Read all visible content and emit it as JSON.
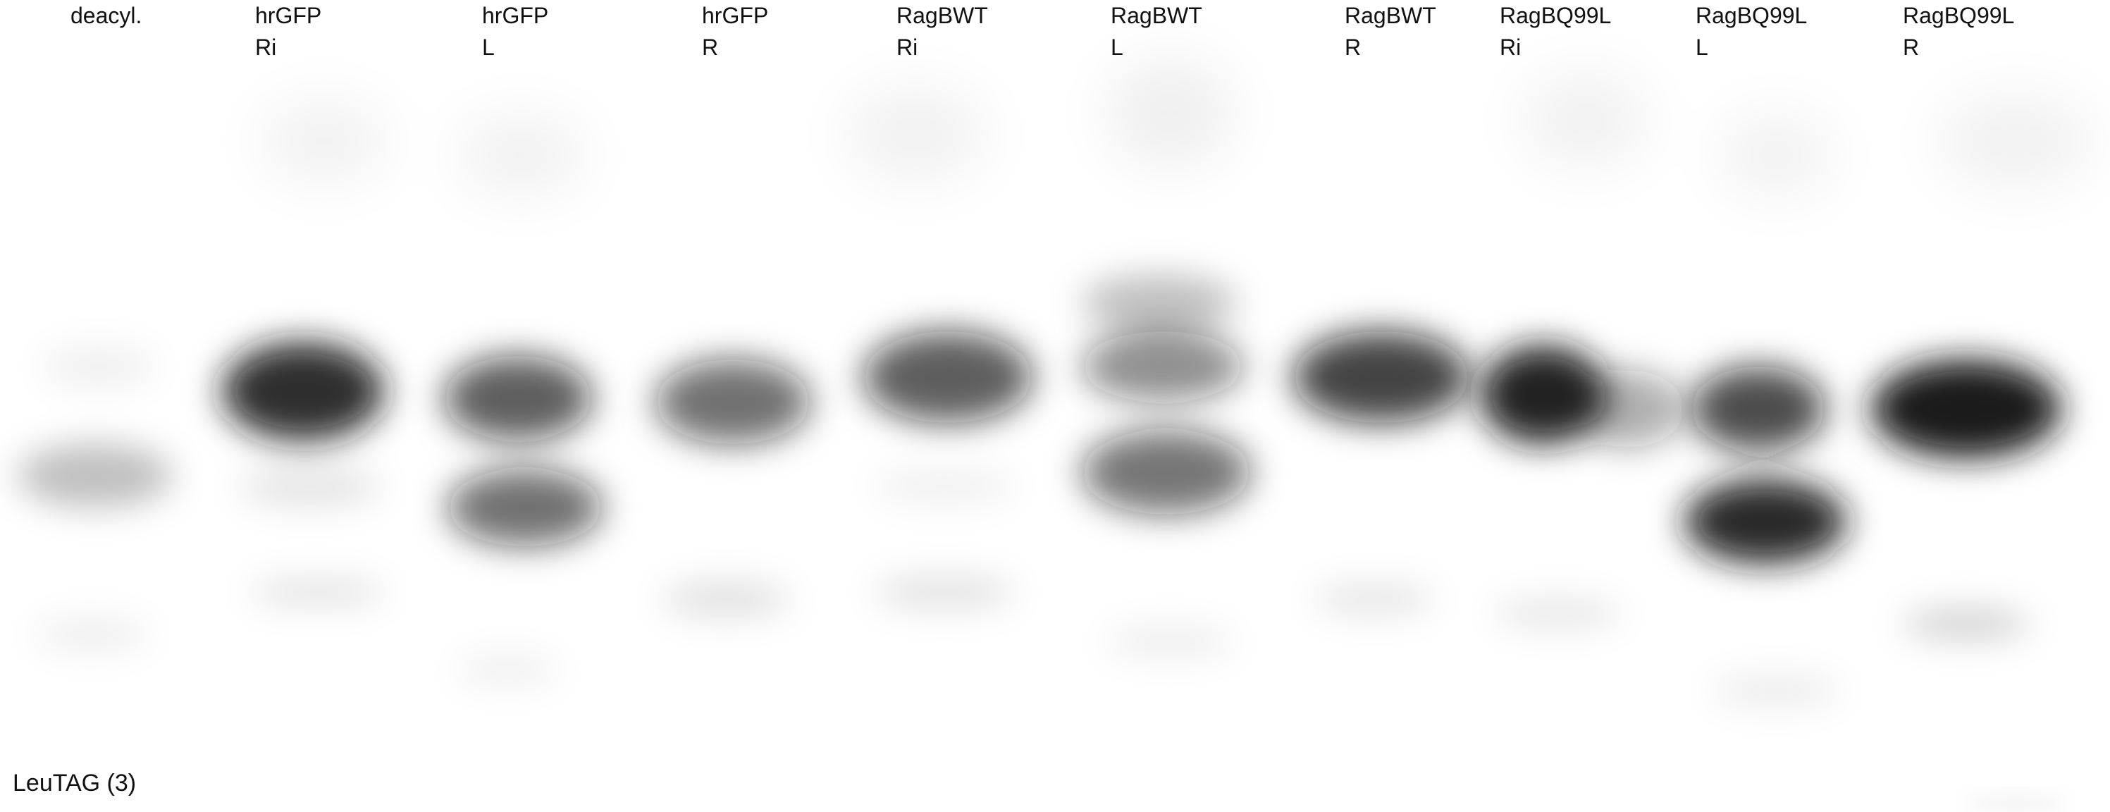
{
  "lanes": [
    {
      "line1": "deacyl.",
      "line2": ""
    },
    {
      "line1": "hrGFP",
      "line2": "Ri"
    },
    {
      "line1": "hrGFP",
      "line2": "L"
    },
    {
      "line1": "hrGFP",
      "line2": "R"
    },
    {
      "line1": "RagBWT",
      "line2": "Ri"
    },
    {
      "line1": "RagBWT",
      "line2": "L"
    },
    {
      "line1": "RagBWT",
      "line2": "R"
    },
    {
      "line1": "RagBQ99L",
      "line2": "Ri"
    },
    {
      "line1": "RagBQ99L",
      "line2": "L"
    },
    {
      "line1": "RagBQ99L",
      "line2": "R"
    }
  ],
  "caption": "LeuTAG (3)",
  "colors": {
    "background": "#ffffff",
    "band": "#141414",
    "text": "#111111"
  }
}
